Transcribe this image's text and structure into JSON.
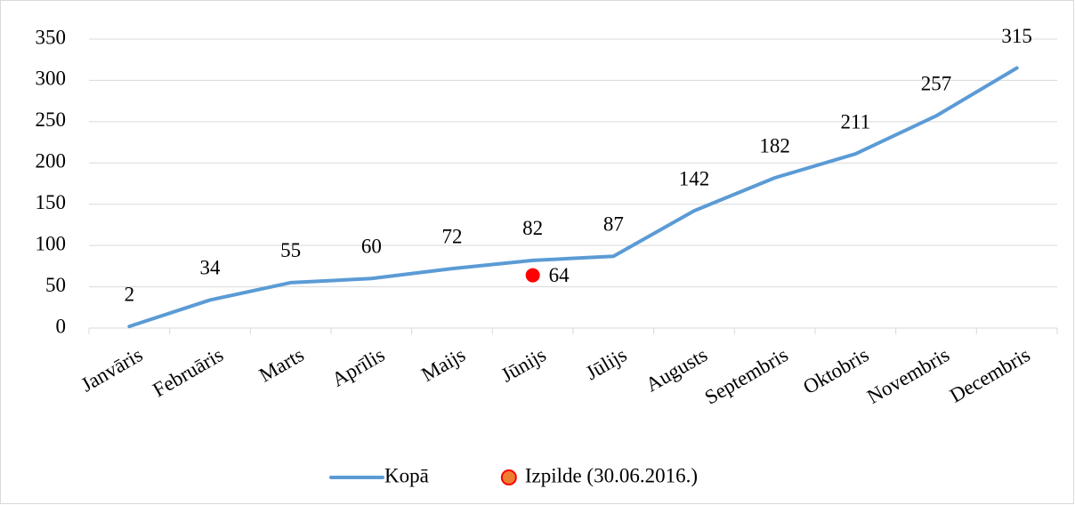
{
  "chart_data": {
    "type": "line",
    "categories": [
      "Janvāris",
      "Februāris",
      "Marts",
      "Aprīlis",
      "Maijs",
      "Jūnijs",
      "Jūlijs",
      "Augusts",
      "Septembris",
      "Oktobris",
      "Novembris",
      "Decembris"
    ],
    "series": [
      {
        "name": "Kopā",
        "color": "#5b9bd5",
        "values": [
          2,
          34,
          55,
          60,
          72,
          82,
          87,
          142,
          182,
          211,
          257,
          315
        ]
      },
      {
        "name": "Izpilde (30.06.2016.)",
        "color": "#ff0000",
        "values": [
          null,
          null,
          null,
          null,
          null,
          64,
          null,
          null,
          null,
          null,
          null,
          null
        ]
      }
    ],
    "ylim": [
      0,
      350
    ],
    "yticks": [
      0,
      50,
      100,
      150,
      200,
      250,
      300,
      350
    ],
    "grid": true,
    "legend": "bottom"
  }
}
